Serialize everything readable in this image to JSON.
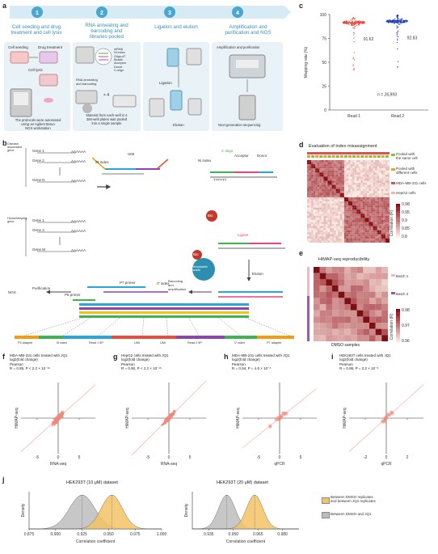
{
  "panel_labels": {
    "a": "a",
    "b": "b",
    "c": "c",
    "d": "d",
    "e": "e",
    "f": "f",
    "g": "g",
    "h": "h",
    "i": "i",
    "j": "j"
  },
  "workflow": {
    "steps": [
      {
        "num": "1",
        "title": "Cell seeding and drug\ntreatment and cell lysis"
      },
      {
        "num": "2",
        "title": "RNA annealing and\nbarcoding and\nlibraries pooled"
      },
      {
        "num": "3",
        "title": "Ligation and elution"
      },
      {
        "num": "4",
        "title": "Amplification and\npurification and NGS"
      }
    ],
    "labels": {
      "cell_seeding": "Cell seeding",
      "drug_treatment": "Drug treatment",
      "cell_lysis": "Cell lysis",
      "note1": "The protocols were automated\nusing an Agilent Bravo\nNGS workstation",
      "mrna": "mRNA",
      "ni_index": "Ni index",
      "oligo_dt": "Oligo-dT",
      "beads": "Beads",
      "acceptor": "Acceptor",
      "donor": "Donor",
      "c_oligo": "C-oligo",
      "rna_annealing": "RNA annealing\nand barcoding",
      "times4": "× 4",
      "note2": "Material from each well in 4\n384-well plates was pooled\ninto a single sample",
      "ligation": "Ligation",
      "elution": "Elution",
      "amp_pur": "Amplification and purification",
      "ngs": "Next-generation sequencing"
    }
  },
  "schematic": {
    "disease_assoc": "Disease-associated\ngene",
    "housekeeping": "Housekeeping\ngene",
    "genes_top": [
      "Gene 1",
      "Gene 2",
      "Gene N"
    ],
    "genes_bottom": [
      "Gene 1",
      "Gene 2",
      "Gene M"
    ],
    "polyA": "AAAAAA",
    "polyT": "TTTTTT",
    "umi": "UMI",
    "ri_index": "/R index",
    "n_index": "Ni index",
    "c_oligo": "C-oligo",
    "acceptor": "Acceptor",
    "donor": "Donor",
    "ligase": "Ligase",
    "bio": "Bio",
    "streptavidin": "Streptavidin\nbeads",
    "elution": "Elution",
    "barcoding": "Barcoding\nand\namplification",
    "p7_primer": "P7 primer",
    "p5_primer": "P5 primer",
    "i7_index": "i7 index",
    "purification": "Purification",
    "ngs": "NGS",
    "five": "5'",
    "three": "3'",
    "read_labels": [
      "P5 adapter",
      "i5 index",
      "Read 1 5P",
      "UMI",
      "UMI",
      "Read 2 5P",
      "i7 index",
      "P7 adapter"
    ]
  },
  "chart_data": [
    {
      "id": "c",
      "type": "scatter",
      "ylabel": "Mapping rate (%)",
      "ylim": [
        0,
        100
      ],
      "yticks": [
        "0",
        "25",
        "50",
        "75",
        "100"
      ],
      "categories": [
        "Read 1",
        "Read 2"
      ],
      "medians": [
        91.62,
        92.83
      ],
      "median_labels": [
        "91.62",
        "92.83"
      ],
      "n_label": "n = 26,893",
      "colors": [
        "#e8463a",
        "#1c3ab8"
      ]
    },
    {
      "id": "d",
      "type": "heatmap",
      "title": "Evaluation of index misassignment",
      "legend": [
        "Pooled with\nthe same cell",
        "Pooled with\ndifferent cells",
        "MDA-MB-231 cells",
        "HepG2 cells"
      ],
      "colorbar_label": "Correlation (R)",
      "colorbar_ticks": [
        "0.98",
        "0.95",
        "0.9",
        "0.85",
        "0.8"
      ]
    },
    {
      "id": "e",
      "type": "heatmap",
      "title": "HiMAP-seq reproducibility",
      "legend": [
        "Batch 1",
        "Batch 2"
      ],
      "xlabel": "DMSO samples",
      "colorbar_label": "Correlation (R)",
      "colorbar_ticks": [
        "0.98",
        "0.97",
        "0.96"
      ]
    },
    {
      "id": "f",
      "type": "scatter",
      "title": "MDA-MB-231 cells treated with JQ1\nlog2(fold change)\nPearson\nR = 0.85, P < 2.2 × 10⁻¹⁶",
      "xlabel": "RNA-seq",
      "ylabel": "HiMAP-seq",
      "xticks": [
        "-5",
        "0",
        "5"
      ]
    },
    {
      "id": "g",
      "type": "scatter",
      "title": "HepG2 cells treated with JQ1\nlog2(fold change)\nPearson\nR = 0.90, P < 2.2 × 10⁻¹⁶",
      "xlabel": "RNA-seq",
      "ylabel": "HiMAP-seq",
      "xticks": [
        "-5",
        "0",
        "5"
      ]
    },
    {
      "id": "h",
      "type": "scatter",
      "title": "MDA-MB-231 cells treated with JQ1\nlog2(fold change)\nPearson\nR = 0.94, P = 4.6 × 10⁻⁶",
      "xlabel": "qPCR",
      "ylabel": "HiMAP-seq",
      "xticks": [
        "-5",
        "0",
        "5"
      ]
    },
    {
      "id": "i",
      "type": "scatter",
      "title": "HEK293T cells treated with JQ1\nlog2(fold change)\nPearson\nR = 0.95, P = 3.2 × 10⁻⁶",
      "xlabel": "qPCR",
      "ylabel": "HiMAP-seq",
      "xticks": [
        "-2",
        "0",
        "2"
      ]
    },
    {
      "id": "j1",
      "type": "area",
      "title": "HEK293T (10 μM) dataset",
      "xlabel": "Correlation coefficient",
      "ylabel": "Density",
      "xticks": [
        "0.875",
        "0.900",
        "0.925",
        "0.950",
        "0.975",
        "1.000"
      ],
      "xlim": [
        0.875,
        1.0
      ],
      "series": [
        {
          "name": "Between DMSO and JQ1",
          "mean": 0.925,
          "sd": 0.012,
          "color": "#bdbdbd"
        },
        {
          "name": "Between DMSO replicates and between JQ1 replicates",
          "mean": 0.953,
          "sd": 0.01,
          "color": "#f2c365"
        }
      ]
    },
    {
      "id": "j2",
      "type": "area",
      "title": "HEK293T (20 μM) dataset",
      "xlabel": "Correlation coefficient",
      "ylabel": "Density",
      "xticks": [
        "0.935",
        "0.950",
        "0.965",
        "0.980"
      ],
      "xlim": [
        0.925,
        0.99
      ],
      "series": [
        {
          "name": "Between DMSO and JQ1",
          "mean": 0.946,
          "sd": 0.005,
          "color": "#bdbdbd"
        },
        {
          "name": "Between DMSO replicates and between JQ1 replicates",
          "mean": 0.963,
          "sd": 0.005,
          "color": "#f2c365"
        }
      ]
    }
  ],
  "j_legend": [
    "Between DMSO replicates\nand between JQ1 replicates",
    "Between DMSO and JQ1"
  ]
}
